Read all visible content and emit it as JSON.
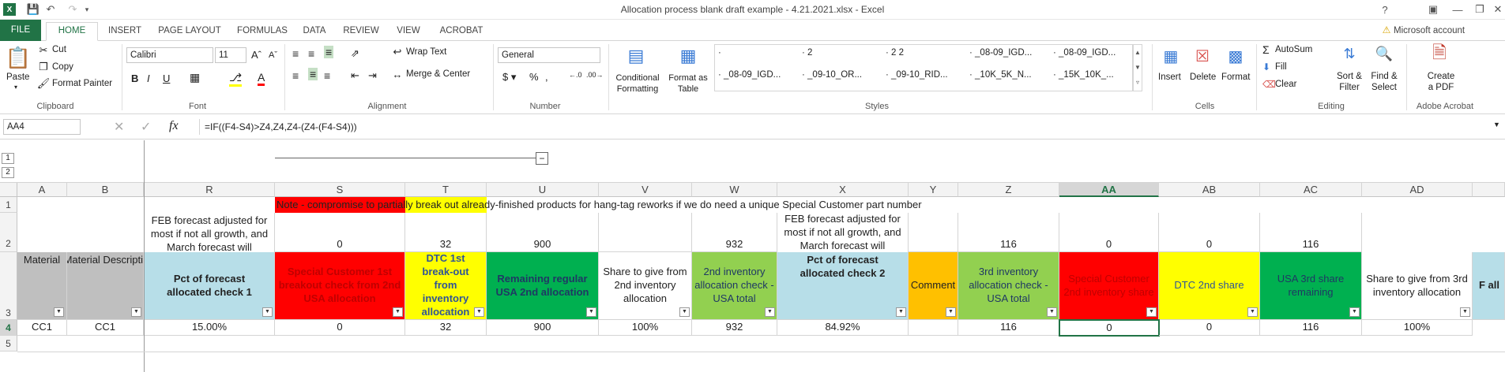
{
  "window": {
    "title": "Allocation process blank draft example - 4.21.2021.xlsx - Excel",
    "account": "Microsoft account"
  },
  "tabs": [
    "FILE",
    "HOME",
    "INSERT",
    "PAGE LAYOUT",
    "FORMULAS",
    "DATA",
    "REVIEW",
    "VIEW",
    "ACROBAT"
  ],
  "ribbon": {
    "clipboard": {
      "paste": "Paste",
      "cut": "Cut",
      "copy": "Copy",
      "format_painter": "Format Painter",
      "label": "Clipboard"
    },
    "font": {
      "name": "Calibri",
      "size": "11",
      "label": "Font"
    },
    "alignment": {
      "wrap": "Wrap Text",
      "merge": "Merge & Center",
      "label": "Alignment"
    },
    "number": {
      "format": "General",
      "label": "Number"
    },
    "styles": {
      "cond": "Conditional Formatting",
      "table": "Format as Table",
      "label": "Styles",
      "gallery": [
        "·",
        "· 2",
        "· 2 2",
        "· _08-09_IGD...",
        "· _08-09_IGD...",
        "· _08-09_IGD...",
        "· _09-10_OR...",
        "· _09-10_RID...",
        "· _10K_5K_N...",
        "· _15K_10K_..."
      ]
    },
    "cells": {
      "insert": "Insert",
      "delete": "Delete",
      "format": "Format",
      "label": "Cells"
    },
    "editing": {
      "autosum": "AutoSum",
      "fill": "Fill",
      "clear": "Clear",
      "sort": "Sort & Filter",
      "find": "Find & Select",
      "label": "Editing"
    },
    "acrobat": {
      "create": "Create a PDF",
      "label": "Adobe Acrobat"
    }
  },
  "formula_bar": {
    "name_box": "AA4",
    "formula": "=IF((F4-S4)>Z4,Z4,Z4-(Z4-(F4-S4)))"
  },
  "outline": {
    "levels": [
      "1",
      "2"
    ],
    "collapse": "−"
  },
  "columns": [
    "A",
    "B",
    "R",
    "S",
    "T",
    "U",
    "V",
    "W",
    "X",
    "Y",
    "Z",
    "AA",
    "AB",
    "AC",
    "AD"
  ],
  "rows": [
    "1",
    "2",
    "3",
    "4",
    "5"
  ],
  "row1": {
    "note": "Note - compromise to partially break out already-finished products for hang-tag reworks if we do need a unique Special Customer part number"
  },
  "row2": {
    "R": "FEB forecast adjusted for most if not all growth, and March forecast will",
    "S": "0",
    "T": "32",
    "U": "900",
    "W": "932",
    "X": "FEB forecast adjusted for most if not all growth, and March forecast will",
    "Z": "116",
    "AA": "0",
    "AB": "0",
    "AC": "116"
  },
  "row3": {
    "A": "Material",
    "B": "Material Descripti",
    "R": "Pct of forecast allocated check 1",
    "S": "Special Customer 1st breakout check from 2nd USA allocation",
    "T": "DTC 1st break-out from inventory allocation",
    "U": "Remaining regular USA 2nd allocation",
    "V": "Share to give from 2nd inventory allocation",
    "W": "2nd inventory allocation check - USA total",
    "X": "Pct of forecast allocated check 2",
    "Y": "Comment",
    "Z": "3rd inventory allocation check - USA total",
    "AA": "Special Customer 2nd inventory share",
    "AB": "DTC 2nd share",
    "AC": "USA 3rd share remaining",
    "AD": "Share to give from 3rd inventory allocation",
    "AE": "F all"
  },
  "row4": {
    "A": "CC1",
    "B": "CC1",
    "R": "15.00%",
    "S": "0",
    "T": "32",
    "U": "900",
    "V": "100%",
    "W": "932",
    "X": "84.92%",
    "Y": "",
    "Z": "116",
    "AA": "0",
    "AB": "0",
    "AC": "116",
    "AD": "100%"
  },
  "colors": {
    "excel_green": "#217346",
    "red": "#ff0000",
    "yellow": "#ffff00",
    "green": "#00b050",
    "lightgreen": "#92d050",
    "lightblue": "#b7dee8",
    "orange": "#ffc000",
    "gray": "#bfbfbf",
    "header_sel": "#d6d6d6"
  }
}
